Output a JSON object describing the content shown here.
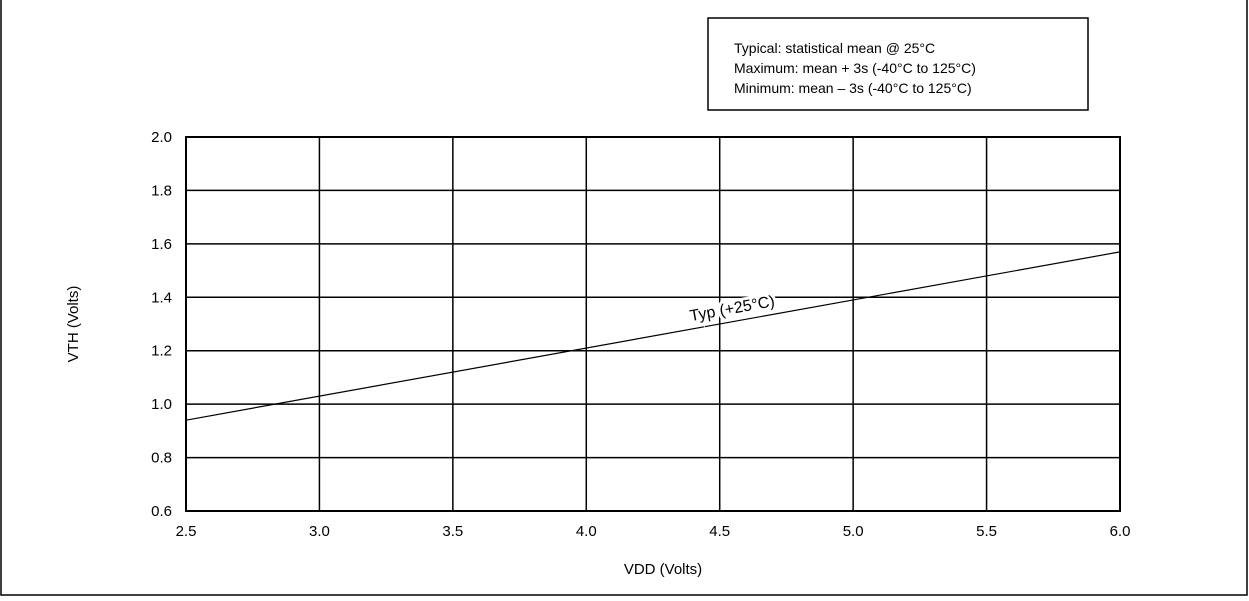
{
  "chart_data": {
    "type": "line",
    "xlabel": "VDD (Volts)",
    "ylabel": "VTH (Volts)",
    "xlim": [
      2.5,
      6.0
    ],
    "ylim": [
      0.6,
      2.0
    ],
    "xticks": [
      "2.5",
      "3.0",
      "3.5",
      "4.0",
      "4.5",
      "5.0",
      "5.5",
      "6.0"
    ],
    "yticks": [
      "0.6",
      "0.8",
      "1.0",
      "1.2",
      "1.4",
      "1.6",
      "1.8",
      "2.0"
    ],
    "grid": true,
    "legend_box": [
      "Typical:  statistical mean @ 25°C",
      "Maximum:  mean + 3s (-40°C to 125°C)",
      "Minimum:   mean – 3s (-40°C to 125°C)"
    ],
    "series": [
      {
        "name": "Typ (+25°C)",
        "x": [
          2.5,
          6.0
        ],
        "y": [
          0.94,
          1.57
        ],
        "color": "#000000"
      }
    ]
  }
}
